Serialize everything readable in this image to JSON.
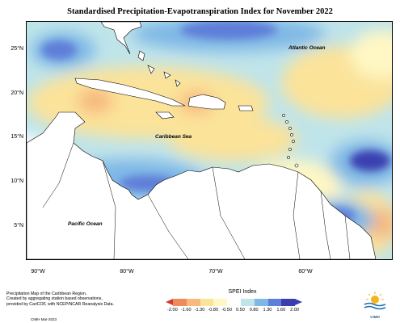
{
  "title": "Standardised Precipitation-Evapotranspiration Index for November 2022",
  "lat_labels": [
    "25°N",
    "20°N",
    "15°N",
    "10°N",
    "5°N"
  ],
  "lon_labels": [
    "90°W",
    "80°W",
    "70°W",
    "60°W"
  ],
  "ocean_labels": {
    "atlantic": "Atlantic Ocean",
    "caribbean": "Caribbean Sea",
    "pacific": "Pacific Ocean"
  },
  "legend": {
    "title": "SPEI Index",
    "ticks": [
      "-2.00",
      "-1.60",
      "-1.30",
      "-0.80",
      "-0.50",
      "0.50",
      "0.80",
      "1.30",
      "1.60",
      "2.00"
    ],
    "colors": [
      "#d23a2e",
      "#f08a5d",
      "#f7b980",
      "#fbe39a",
      "#fff7c4",
      "#ffffff",
      "#bfe4ea",
      "#7fb8e6",
      "#5e7ed8",
      "#3a3fb0",
      "#3a3fb0"
    ]
  },
  "footnote": {
    "line1": "Precipitation Map of the Caribbean Region.",
    "line2": "Created by aggregating station based observations,",
    "line3": "provided by CariCOF, with NCEP/NCAR Reanalysis Data.",
    "credit": "CIMH Mar-2023"
  },
  "logo": {
    "text": "CIMH"
  }
}
